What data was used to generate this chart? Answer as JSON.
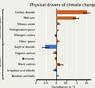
{
  "title": "Physical drivers of climate change",
  "xlabel": "Contribution in °C",
  "categories": [
    "Carbon dioxide",
    "Methane",
    "Nitrous oxide",
    "Halogenated gases",
    "Nitrogen oxides",
    "Other gases",
    "Sulphur dioxide",
    "Organic carbon",
    "Ammonia",
    "Black carbon",
    "Irrigation and albedo",
    "Aviation contrails"
  ],
  "values": [
    1.53,
    0.97,
    0.12,
    0.06,
    -0.03,
    0.1,
    -0.55,
    -0.08,
    -0.04,
    0.2,
    -0.08,
    0.06
  ],
  "errors": [
    0.2,
    0.14,
    0.03,
    0.015,
    0.04,
    0.04,
    0.14,
    0.07,
    0.03,
    0.1,
    0.08,
    0.04
  ],
  "group_labels": [
    "Greenhouse gases",
    "Aerosols"
  ],
  "group_ranges": [
    [
      0,
      6
    ],
    [
      6,
      12
    ]
  ],
  "bar_colors": [
    "#c0622b",
    "#c0622b",
    "#c0622b",
    "#c0622b",
    "#4472c4",
    "#c0622b",
    "#4472c4",
    "#c0622b",
    "#c0622b",
    "#c0622b",
    "#4472c4",
    "#4472c4"
  ],
  "xlim": [
    -1.0,
    1.7
  ],
  "xticks": [
    -1,
    -0.5,
    0,
    0.5,
    1,
    1.5
  ],
  "xtick_labels": [
    "-1",
    "-0.5",
    "0",
    "0.5",
    "1",
    "1.5"
  ],
  "background_color": "#f0efe8",
  "title_fontsize": 3.5,
  "label_fontsize": 2.4,
  "xlabel_fontsize": 2.4
}
